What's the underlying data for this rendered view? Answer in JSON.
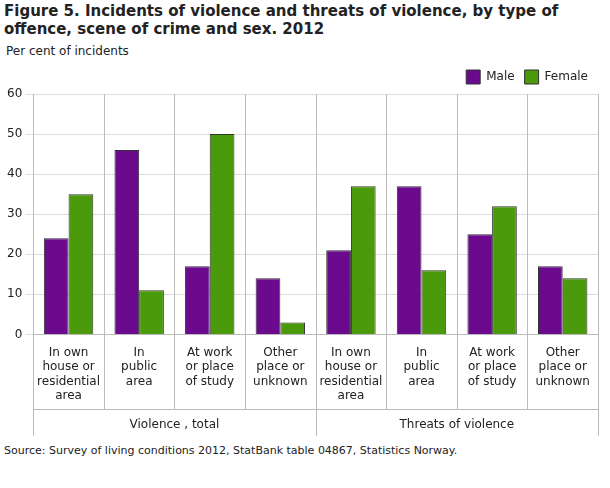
{
  "chart_data": {
    "type": "bar",
    "title": "Figure 5. Incidents of violence and threats of violence, by type of offence, scene of crime and sex. 2012",
    "y_label": "Per cent of incidents",
    "source": "Source: Survey of living conditions 2012, StatBank table 04867, Statistics Norway.",
    "group_labels": [
      "Violence , total",
      "Threats of violence"
    ],
    "categories": [
      "In own house or residential area",
      "In public area",
      "At work or place of study",
      "Other place or unknown",
      "In own house or residential area",
      "In public area",
      "At work or place of study",
      "Other place or unknown"
    ],
    "series": [
      {
        "name": "Male",
        "color": "#6b0a8c",
        "values": [
          24,
          46,
          17,
          14,
          21,
          37,
          25,
          17
        ]
      },
      {
        "name": "Female",
        "color": "#4b9a0c",
        "values": [
          35,
          11,
          50,
          3,
          37,
          16,
          32,
          14
        ]
      }
    ],
    "ylim": [
      0,
      60
    ],
    "yticks": [
      0,
      10,
      20,
      30,
      40,
      50,
      60
    ],
    "grid": true,
    "legend": "upper right"
  }
}
